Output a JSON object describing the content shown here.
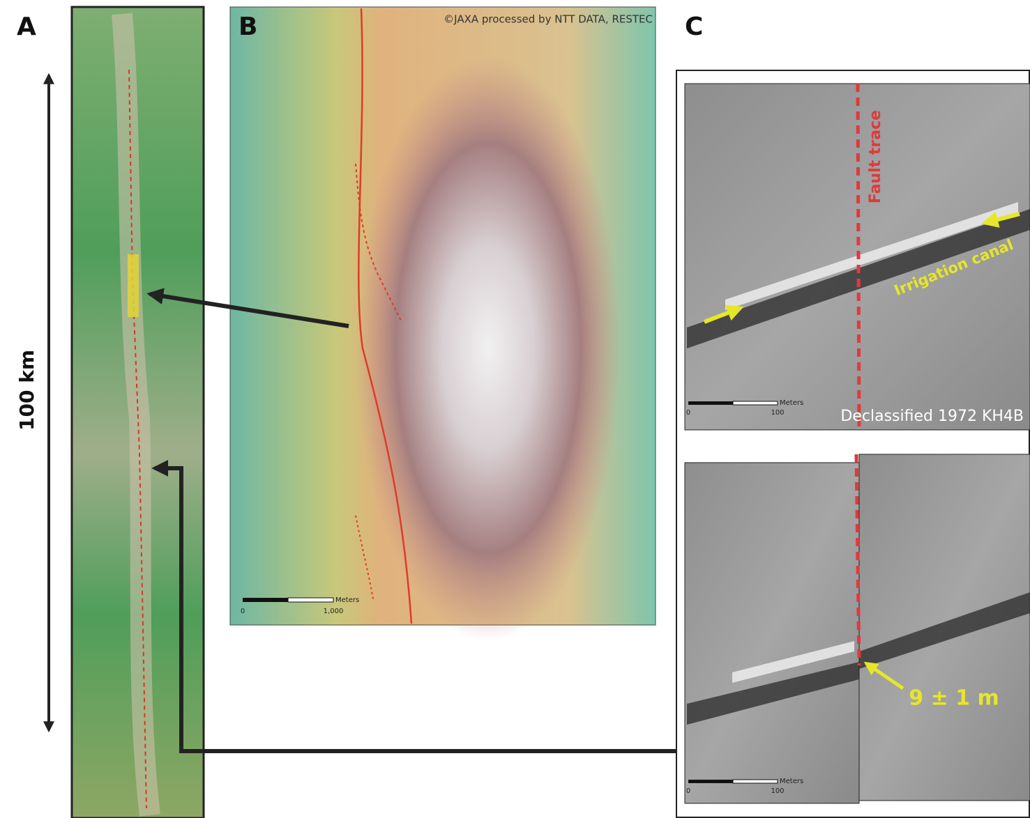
{
  "panel_a": {
    "label": "A",
    "scale_label": "100 km"
  },
  "panel_b": {
    "label": "B",
    "credit": "©JAXA processed by NTT DATA, RESTEC",
    "scale_bar": {
      "unit": "Meters",
      "start": "0",
      "end": "1,000"
    }
  },
  "panel_c": {
    "label": "C",
    "top_image": {
      "fault_label": "Fault trace",
      "canal_label": "Irrigation canal",
      "caption": "Declassified 1972 KH4B",
      "scale_bar": {
        "unit": "Meters",
        "start": "0",
        "end": "100"
      }
    },
    "bottom_image": {
      "offset_label": "9 ± 1 m",
      "scale_bar": {
        "unit": "Meters",
        "start": "0",
        "end": "100"
      }
    }
  }
}
